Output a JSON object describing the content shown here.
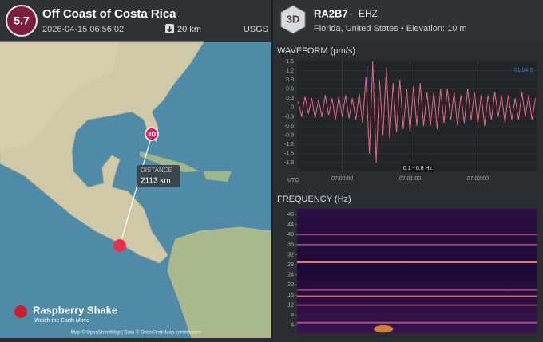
{
  "event": {
    "magnitude": 5.7,
    "title": "Off Coast of Costa Rica",
    "time": "2026-04-15 06:56:02",
    "depth": "20 km",
    "source": "USGS"
  },
  "map": {
    "station_marker": "3D",
    "distance_label": "DISTANCE",
    "distance": "2113 km",
    "logo": "Raspberry Shake",
    "logo_tagline": "Watch the Earth Move",
    "attribution": "Map © OpenStreetMap | Data © OpenStreetMap contributors"
  },
  "station": {
    "badge": "3D",
    "code": "RA2B7",
    "separator": "-",
    "channel": "EHZ",
    "location": "Florida, United States • Elevation: 10 m"
  },
  "chart_data": [
    {
      "type": "line",
      "title": "WAVEFORM (μm/s)",
      "x_axis_label": "UTC",
      "filter_label": "0.1 - 0.8 Hz",
      "marker_label": "01:04 S",
      "marker_x": 22,
      "color": "#f0637e",
      "marker_color": "#4a78d8",
      "xlim": [
        -40,
        172
      ],
      "xticks": [
        {
          "value": 0,
          "label": "07:00:00"
        },
        {
          "value": 60,
          "label": "07:01:00"
        },
        {
          "value": 120,
          "label": "07:02:00"
        }
      ],
      "ylim": [
        -2.05,
        1.55
      ],
      "yticks": [
        1.5,
        1.2,
        0.9,
        0.6,
        0.3,
        0,
        -0.3,
        -0.6,
        -0.9,
        -1.2,
        -1.5,
        -1.8
      ],
      "grid": true,
      "x": [
        -39,
        -36,
        -33,
        -30,
        -27,
        -24,
        -21,
        -18,
        -15,
        -12,
        -9,
        -6,
        -3,
        0,
        3,
        6,
        9,
        12,
        15,
        18,
        21,
        24,
        27,
        30,
        33,
        36,
        39,
        42,
        45,
        48,
        51,
        54,
        57,
        60,
        63,
        66,
        69,
        72,
        75,
        78,
        81,
        84,
        87,
        90,
        93,
        96,
        99,
        102,
        105,
        108,
        111,
        114,
        117,
        120,
        123,
        126,
        129,
        132,
        135,
        138,
        141,
        144,
        147,
        150,
        153,
        156,
        159,
        162,
        165,
        168,
        171
      ],
      "values": [
        0.2,
        -0.3,
        0.35,
        -0.2,
        0.3,
        -0.35,
        0.25,
        -0.3,
        0.4,
        -0.25,
        0.3,
        -0.4,
        0.35,
        -0.3,
        0.4,
        -0.35,
        0.3,
        -0.4,
        0.45,
        -0.5,
        1.0,
        -1.5,
        1.5,
        -1.8,
        0.9,
        -0.9,
        1.3,
        -1.0,
        0.8,
        -0.8,
        0.9,
        -0.7,
        0.6,
        -0.8,
        0.7,
        -0.6,
        0.8,
        -0.6,
        0.5,
        -0.6,
        0.5,
        -0.7,
        0.6,
        -0.5,
        0.6,
        -0.4,
        0.5,
        -0.6,
        0.4,
        -0.5,
        0.6,
        -0.4,
        0.5,
        -0.5,
        0.4,
        -0.6,
        0.4,
        -0.4,
        0.5,
        -0.3,
        0.4,
        -0.5,
        0.4,
        -0.4,
        0.3,
        -0.4,
        0.5,
        -0.3,
        0.4,
        -0.4,
        0.3
      ]
    },
    {
      "type": "heatmap",
      "title": "FREQUENCY (Hz)",
      "xlim": [
        -40,
        172
      ],
      "ylim": [
        0.8,
        50.2
      ],
      "yticks": [
        4,
        8,
        12,
        16,
        20,
        24,
        28,
        32,
        36,
        40,
        44,
        48
      ],
      "bands": [
        {
          "freq": 29,
          "intensity": 0.9
        },
        {
          "freq": 36,
          "intensity": 0.5
        },
        {
          "freq": 40,
          "intensity": 0.5
        },
        {
          "freq": 18,
          "intensity": 0.5
        },
        {
          "freq": 15.5,
          "intensity": 0.8
        },
        {
          "freq": 12,
          "intensity": 0.5
        },
        {
          "freq": 5,
          "intensity": 0.6
        }
      ],
      "hotspot": {
        "x": [
          28,
          45
        ],
        "y": [
          1,
          4
        ]
      }
    }
  ]
}
